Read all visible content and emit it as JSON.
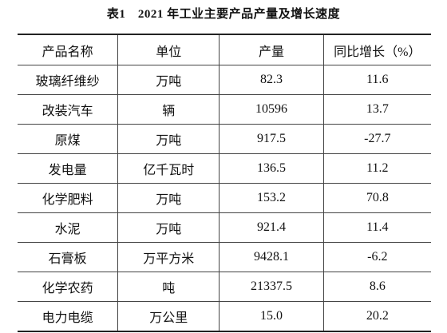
{
  "title": "表1　2021 年工业主要产品产量及增长速度",
  "table": {
    "header": [
      "产品名称",
      "单位",
      "产量",
      "同比增长（%）"
    ],
    "rows": [
      [
        "玻璃纤维纱",
        "万吨",
        "82.3",
        "11.6"
      ],
      [
        "改装汽车",
        "辆",
        "10596",
        "13.7"
      ],
      [
        "原煤",
        "万吨",
        "917.5",
        "-27.7"
      ],
      [
        "发电量",
        "亿千瓦时",
        "136.5",
        "11.2"
      ],
      [
        "化学肥料",
        "万吨",
        "153.2",
        "70.8"
      ],
      [
        "水泥",
        "万吨",
        "921.4",
        "11.4"
      ],
      [
        "石膏板",
        "万平方米",
        "9428.1",
        "-6.2"
      ],
      [
        "化学农药",
        "吨",
        "21337.5",
        "8.6"
      ],
      [
        "电力电缆",
        "万公里",
        "15.0",
        "20.2"
      ]
    ]
  }
}
